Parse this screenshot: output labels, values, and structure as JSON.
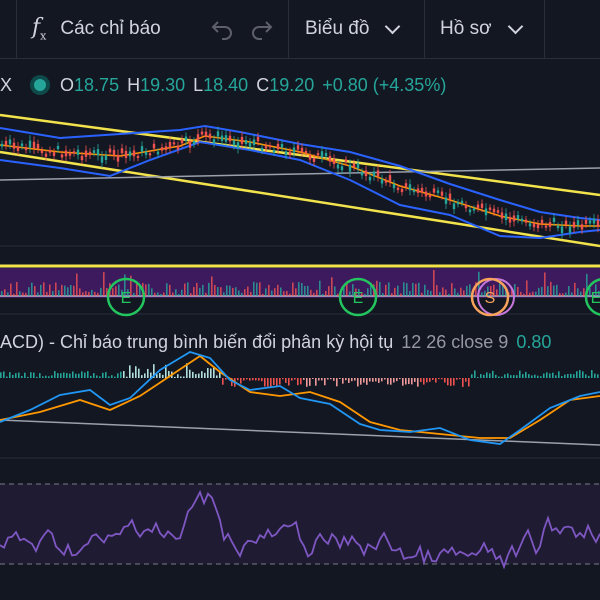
{
  "toolbar": {
    "indicators_label": "Các chỉ báo",
    "chart_label": "Biểu đồ",
    "profile_label": "Hồ sơ"
  },
  "legend": {
    "symbol": "X",
    "open_key": "O",
    "open": "18.75",
    "high_key": "H",
    "high": "19.30",
    "low_key": "L",
    "low": "18.40",
    "close_key": "C",
    "close": "19.20",
    "change": "+0.80 (+4.35%)"
  },
  "macd": {
    "title": "ACD) - Chỉ báo trung bình biến đổi phân kỳ hội tụ",
    "params": "12 26 close 9",
    "value": "0.80"
  },
  "markers": [
    {
      "label": "E",
      "color": "#22c55e"
    },
    {
      "label": "E",
      "color": "#22c55e"
    },
    {
      "label": "S",
      "color": "#f7a35c"
    },
    {
      "label": "E",
      "color": "#22c55e"
    }
  ],
  "colors": {
    "background": "#131722",
    "up": "#26a69a",
    "down": "#ef5350",
    "bollinger": "#2962ff",
    "channel": "#f2e34c",
    "macd_line": "#2196f3",
    "signal_line": "#ff9800",
    "rsi": "#7e57c2"
  }
}
